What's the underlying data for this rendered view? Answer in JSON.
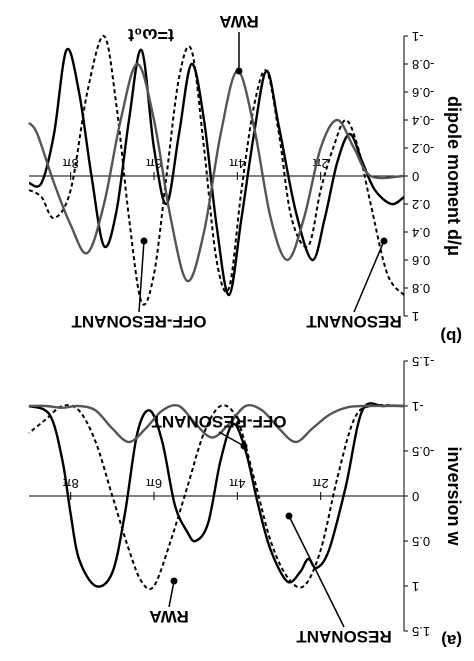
{
  "chart_data": [
    {
      "panel": "(a)",
      "type": "line",
      "ylabel": "inversion w",
      "ylim": [
        -1.5,
        1.5
      ],
      "yticks": [
        "-1.5",
        "-1",
        "-0.5",
        "0",
        "0.5",
        "1",
        "1.5"
      ],
      "xlim": [
        0,
        9.0
      ],
      "xticks": [
        "2π",
        "4π",
        "6π",
        "8π"
      ],
      "annotations": [
        "RWA",
        "RESONANT",
        "OFF-RESONANT"
      ],
      "series": [
        {
          "name": "RESONANT",
          "style": "solid",
          "color": "#000000",
          "x": [
            0,
            0.5,
            1.0,
            1.4,
            1.8,
            2.1,
            2.3,
            2.5,
            2.8,
            3.2,
            3.5,
            3.8,
            4.1,
            4.4,
            4.7,
            5.0,
            5.2,
            5.5,
            5.8,
            6.1,
            6.4,
            6.7,
            7.0,
            7.4,
            7.8,
            8.0,
            8.2,
            8.5,
            9.0
          ],
          "y": [
            -1,
            -1,
            -0.95,
            -0.1,
            0.6,
            0.8,
            0.7,
            0.85,
            0.95,
            0.6,
            0.1,
            -0.5,
            -0.8,
            -0.4,
            0.3,
            0.5,
            0.4,
            0.1,
            -0.6,
            -0.95,
            -0.7,
            0.2,
            0.85,
            1.0,
            0.7,
            0.2,
            -0.4,
            -0.9,
            -1.0
          ]
        },
        {
          "name": "RWA",
          "style": "dashed",
          "color": "#000000",
          "x": [
            0,
            0.8,
            1.2,
            1.6,
            2.0,
            2.4,
            2.8,
            3.2,
            3.6,
            4.0,
            4.4,
            4.8,
            5.2,
            5.6,
            6.0,
            6.3,
            6.6,
            7.0,
            7.4,
            7.8,
            8.2,
            8.6,
            9.0
          ],
          "y": [
            -1,
            -1,
            -0.85,
            -0.2,
            0.6,
            1.0,
            0.9,
            0.5,
            -0.2,
            -0.85,
            -1.0,
            -0.7,
            -0.1,
            0.5,
            1.0,
            0.95,
            0.6,
            0.0,
            -0.6,
            -0.95,
            -1.0,
            -0.85,
            -0.7
          ]
        },
        {
          "name": "OFF-RESONANT",
          "style": "solid",
          "color": "#555555",
          "x": [
            0,
            1.0,
            1.4,
            1.8,
            2.2,
            2.6,
            3.0,
            3.4,
            3.8,
            4.2,
            4.6,
            5.0,
            5.4,
            5.8,
            6.2,
            6.6,
            7.0,
            7.4,
            7.8,
            8.2,
            8.6,
            9.0
          ],
          "y": [
            -1,
            -1,
            -0.98,
            -0.9,
            -0.75,
            -0.6,
            -0.75,
            -0.95,
            -1.0,
            -0.8,
            -0.65,
            -0.8,
            -1.0,
            -0.95,
            -0.75,
            -0.6,
            -0.75,
            -0.95,
            -1.0,
            -0.98,
            -1.0,
            -1.0
          ]
        }
      ]
    },
    {
      "panel": "(b)",
      "type": "line",
      "ylabel": "dipole moment d/μ",
      "ylim": [
        -1,
        1
      ],
      "yticks": [
        "-1",
        "-0.8",
        "-0.6",
        "-0.4",
        "-0.2",
        "0",
        "0.2",
        "0.4",
        "0.6",
        "0.8",
        "1"
      ],
      "xlim": [
        0,
        9.0
      ],
      "xticks": [
        "2π",
        "4π",
        "6π",
        "8π"
      ],
      "annotations": [
        "RWA",
        "RESONANT",
        "OFF-RESONANT",
        "t=ω₀t"
      ],
      "series": [
        {
          "name": "RESONANT",
          "style": "solid",
          "color": "#000000",
          "x": [
            0,
            0.3,
            0.7,
            1.0,
            1.3,
            1.6,
            1.9,
            2.2,
            2.6,
            3.0,
            3.3,
            3.6,
            3.9,
            4.2,
            4.5,
            4.8,
            5.1,
            5.4,
            5.7,
            6.0,
            6.3,
            6.6,
            6.9,
            7.2,
            7.5,
            7.8,
            8.1,
            8.4,
            8.7,
            9.0
          ],
          "y": [
            0.15,
            0.2,
            0.1,
            -0.1,
            -0.3,
            -0.1,
            0.3,
            0.6,
            0.25,
            -0.35,
            -0.75,
            -0.3,
            0.3,
            0.85,
            0.35,
            -0.4,
            -0.8,
            -0.3,
            0.2,
            -0.2,
            -0.9,
            -0.4,
            0.25,
            0.5,
            0.0,
            -0.6,
            -0.9,
            -0.3,
            0.05,
            0.05
          ]
        },
        {
          "name": "RWA",
          "style": "dashed",
          "color": "#000000",
          "x": [
            0,
            0.4,
            0.8,
            1.1,
            1.4,
            1.7,
            2.0,
            2.3,
            2.7,
            3.0,
            3.3,
            3.6,
            3.9,
            4.2,
            4.5,
            4.8,
            5.1,
            5.4,
            5.7,
            6.0,
            6.3,
            6.6,
            6.9,
            7.2,
            7.6,
            8.0,
            8.4,
            8.7,
            9.0
          ],
          "y": [
            0.85,
            0.7,
            0.2,
            -0.2,
            -0.4,
            -0.2,
            0.1,
            0.5,
            0.3,
            -0.3,
            -0.75,
            -0.5,
            0.1,
            0.8,
            0.6,
            -0.2,
            -0.9,
            -0.7,
            0.0,
            0.7,
            0.9,
            0.3,
            -0.5,
            -1.0,
            -0.6,
            0.1,
            0.3,
            0.15,
            0.1
          ]
        },
        {
          "name": "OFF-RESONANT",
          "style": "solid",
          "color": "#555555",
          "x": [
            0,
            0.8,
            1.2,
            1.6,
            2.0,
            2.4,
            2.8,
            3.2,
            3.6,
            4.0,
            4.4,
            4.8,
            5.2,
            5.6,
            6.0,
            6.4,
            6.8,
            7.2,
            7.6,
            8.0,
            8.4,
            8.8,
            9.0
          ],
          "y": [
            0,
            0,
            -0.2,
            -0.4,
            -0.2,
            0.3,
            0.6,
            0.3,
            -0.35,
            -0.75,
            -0.3,
            0.4,
            0.75,
            0.3,
            -0.4,
            -0.8,
            -0.4,
            0.2,
            0.55,
            0.35,
            0.05,
            -0.3,
            -0.38
          ]
        }
      ]
    }
  ],
  "labels": {
    "panel_a": "(a)",
    "panel_b": "(b)",
    "time_axis": "t=ω₀t",
    "annot_rwa": "RWA",
    "annot_resonant": "RESONANT",
    "annot_offres": "OFF-RESONANT"
  }
}
